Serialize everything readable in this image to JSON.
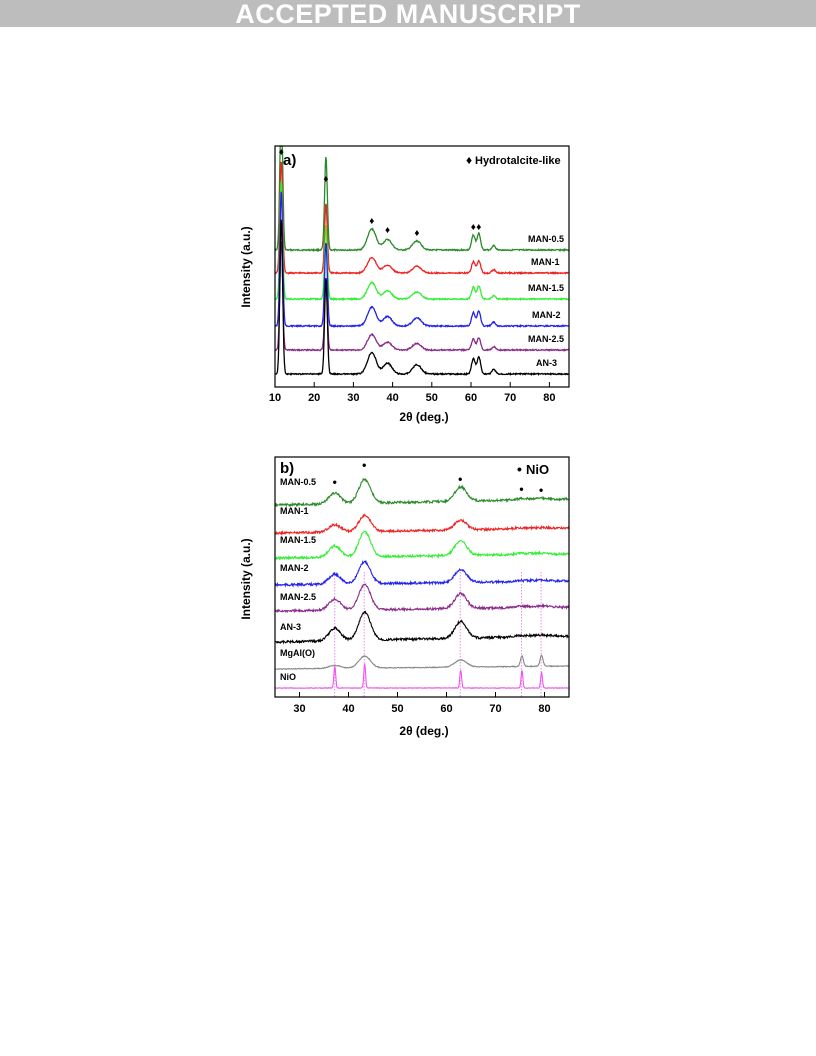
{
  "header": {
    "banner_text": "ACCEPTED MANUSCRIPT"
  },
  "chart_data": [
    {
      "type": "line",
      "panel_label": "a)",
      "xlabel": "2θ (deg.)",
      "ylabel": "Intensity (a.u.)",
      "xlim": [
        10,
        85
      ],
      "xticks": [
        10,
        20,
        30,
        40,
        50,
        60,
        70,
        80
      ],
      "legend": {
        "marker": "♦",
        "text": "Hydrotalcite-like",
        "position": "top-right"
      },
      "peak_markers": [
        11.6,
        23.0,
        34.7,
        38.7,
        46.2,
        60.6,
        62.0
      ],
      "series": [
        {
          "name": "MAN-0.5",
          "color": "#2a8a2a"
        },
        {
          "name": "MAN-1",
          "color": "#ee2222"
        },
        {
          "name": "MAN-1.5",
          "color": "#33ee33"
        },
        {
          "name": "MAN-2",
          "color": "#2222ee"
        },
        {
          "name": "MAN-2.5",
          "color": "#8a2a8a"
        },
        {
          "name": "AN-3",
          "color": "#000000"
        }
      ],
      "peaks": [
        {
          "x": 11.6,
          "h": 1.0
        },
        {
          "x": 23.0,
          "h": 0.62
        },
        {
          "x": 34.7,
          "h": 0.14
        },
        {
          "x": 38.7,
          "h": 0.07
        },
        {
          "x": 46.2,
          "h": 0.06
        },
        {
          "x": 60.6,
          "h": 0.1
        },
        {
          "x": 62.0,
          "h": 0.11
        },
        {
          "x": 65.8,
          "h": 0.03
        }
      ]
    },
    {
      "type": "line",
      "panel_label": "b)",
      "xlabel": "2θ (deg.)",
      "ylabel": "Intensity (a.u.)",
      "xlim": [
        25,
        85
      ],
      "xticks": [
        30,
        40,
        50,
        60,
        70,
        80
      ],
      "legend": {
        "marker": "•",
        "text": "NiO",
        "position": "top-right"
      },
      "peak_markers": [
        37.2,
        43.2,
        62.8,
        75.3,
        79.3
      ],
      "reference_lines": [
        37.2,
        43.2,
        62.8,
        75.3,
        79.3
      ],
      "series": [
        {
          "name": "MAN-0.5",
          "color": "#2a8a2a"
        },
        {
          "name": "MAN-1",
          "color": "#ee2222"
        },
        {
          "name": "MAN-1.5",
          "color": "#33ee33"
        },
        {
          "name": "MAN-2",
          "color": "#2222ee"
        },
        {
          "name": "MAN-2.5",
          "color": "#8a2a8a"
        },
        {
          "name": "AN-3",
          "color": "#000000"
        },
        {
          "name": "MgAl(O)",
          "color": "#888888"
        },
        {
          "name": "NiO",
          "color": "#ee55ee"
        }
      ],
      "peaks": [
        {
          "x": 37.2,
          "h": 0.45
        },
        {
          "x": 43.3,
          "h": 1.0
        },
        {
          "x": 62.9,
          "h": 0.6
        },
        {
          "x": 75.4,
          "h": 0.12
        },
        {
          "x": 79.4,
          "h": 0.1
        }
      ]
    }
  ]
}
